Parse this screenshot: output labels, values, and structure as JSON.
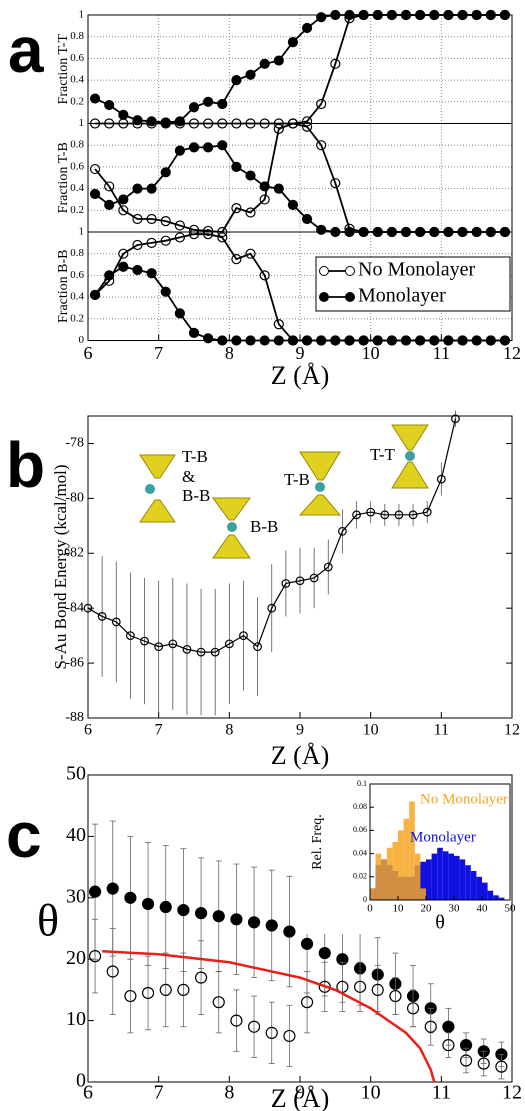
{
  "chart_data": [
    {
      "type": "line",
      "label": "a",
      "xlabel": "Z (Å)",
      "xlim": [
        6,
        12
      ],
      "xticks": [
        6,
        7,
        8,
        9,
        10,
        11,
        12
      ],
      "ylim": [
        0,
        1
      ],
      "yticks": [
        0,
        0.2,
        0.4,
        0.6,
        0.8,
        1
      ],
      "grid": true,
      "legend": "lower right",
      "x": [
        6.1,
        6.3,
        6.5,
        6.7,
        6.9,
        7.1,
        7.3,
        7.5,
        7.7,
        7.9,
        8.1,
        8.3,
        8.5,
        8.7,
        8.9,
        9.1,
        9.3,
        9.5,
        9.7,
        9.9,
        10.1,
        10.3,
        10.5,
        10.7,
        10.9,
        11.1,
        11.3,
        11.5,
        11.7,
        11.9
      ],
      "panels": [
        {
          "ylabel": "Fraction T-T",
          "series": [
            {
              "name": "No Monolayer",
              "marker": "open",
              "color": "#000000",
              "values": [
                0,
                0,
                0,
                0,
                0,
                0,
                0,
                0,
                0,
                0,
                0,
                0,
                0,
                0,
                0,
                0.02,
                0.18,
                0.55,
                0.97,
                1,
                1,
                1,
                1,
                1,
                1,
                1,
                1,
                1,
                1,
                1
              ]
            },
            {
              "name": "Monolayer",
              "marker": "filled",
              "color": "#000000",
              "values": [
                0.23,
                0.17,
                0.08,
                0.03,
                0.02,
                0.01,
                0.02,
                0.15,
                0.2,
                0.18,
                0.4,
                0.45,
                0.55,
                0.58,
                0.75,
                0.88,
                0.98,
                1,
                1,
                1,
                1,
                1,
                1,
                1,
                1,
                1,
                1,
                1,
                1,
                1
              ]
            }
          ]
        },
        {
          "ylabel": "Fraction T-B",
          "series": [
            {
              "name": "No Monolayer",
              "marker": "open",
              "color": "#000000",
              "values": [
                0.58,
                0.42,
                0.2,
                0.12,
                0.12,
                0.1,
                0.06,
                0.02,
                0.01,
                0,
                0.22,
                0.18,
                0.3,
                0.95,
                1,
                0.97,
                0.8,
                0.45,
                0.03,
                0,
                0,
                0,
                0,
                0,
                0,
                0,
                0,
                0,
                0,
                0
              ]
            },
            {
              "name": "Monolayer",
              "marker": "filled",
              "color": "#000000",
              "values": [
                0.35,
                0.25,
                0.3,
                0.4,
                0.4,
                0.55,
                0.75,
                0.78,
                0.78,
                0.8,
                0.6,
                0.52,
                0.42,
                0.4,
                0.25,
                0.12,
                0.02,
                0,
                0,
                0,
                0,
                0,
                0,
                0,
                0,
                0,
                0,
                0,
                0,
                0
              ]
            }
          ]
        },
        {
          "ylabel": "Fraction B-B",
          "series": [
            {
              "name": "No Monolayer",
              "marker": "open",
              "color": "#000000",
              "values": [
                0.42,
                0.55,
                0.8,
                0.88,
                0.9,
                0.92,
                0.95,
                0.98,
                0.98,
                0.95,
                0.75,
                0.8,
                0.6,
                0.15,
                0,
                0,
                0,
                0,
                0,
                0,
                0,
                0,
                0,
                0,
                0,
                0,
                0,
                0,
                0,
                0
              ]
            },
            {
              "name": "Monolayer",
              "marker": "filled",
              "color": "#000000",
              "values": [
                0.42,
                0.6,
                0.68,
                0.65,
                0.62,
                0.45,
                0.25,
                0.07,
                0.02,
                0,
                0,
                0,
                0,
                0,
                0,
                0,
                0,
                0,
                0,
                0,
                0,
                0,
                0,
                0,
                0,
                0,
                0,
                0,
                0,
                0
              ]
            }
          ]
        }
      ]
    },
    {
      "type": "errorline",
      "label": "b",
      "xlabel": "Z (Å)",
      "ylabel": "S-Au Bond Energy (kcal/mol)",
      "xlim": [
        6,
        12
      ],
      "xticks": [
        6,
        7,
        8,
        9,
        10,
        11,
        12
      ],
      "ylim": [
        -88,
        -77
      ],
      "yticks": [
        -88,
        -86,
        -84,
        -82,
        -80,
        -78
      ],
      "annotations": [
        "T-B",
        "&",
        "B-B",
        "B-B",
        "T-B",
        "T-T"
      ],
      "x": [
        6.0,
        6.2,
        6.4,
        6.6,
        6.8,
        7.0,
        7.2,
        7.4,
        7.6,
        7.8,
        8.0,
        8.2,
        8.4,
        8.6,
        8.8,
        9.0,
        9.2,
        9.4,
        9.6,
        9.8,
        10.0,
        10.2,
        10.4,
        10.6,
        10.8,
        11.0,
        11.2
      ],
      "series": [
        {
          "marker": "open",
          "color": "#000000",
          "values": [
            -84.0,
            -84.3,
            -84.5,
            -85.0,
            -85.2,
            -85.4,
            -85.3,
            -85.5,
            -85.6,
            -85.6,
            -85.3,
            -85.0,
            -85.4,
            -84.0,
            -83.1,
            -83.0,
            -82.9,
            -82.5,
            -81.2,
            -80.6,
            -80.5,
            -80.6,
            -80.6,
            -80.6,
            -80.5,
            -79.3,
            -77.1
          ],
          "errors": [
            2.0,
            2.2,
            2.2,
            2.3,
            2.3,
            2.4,
            2.4,
            2.4,
            2.3,
            2.3,
            2.2,
            2.0,
            1.8,
            1.6,
            1.2,
            1.2,
            1.1,
            1.0,
            0.8,
            0.5,
            0.4,
            0.4,
            0.4,
            0.4,
            0.4,
            0.6,
            0.3
          ]
        }
      ]
    },
    {
      "type": "errorscatter",
      "label": "c",
      "xlabel": "Z (Å)",
      "ylabel": "θ",
      "xlim": [
        6,
        12
      ],
      "xticks": [
        6,
        7,
        8,
        9,
        10,
        11,
        12
      ],
      "ylim": [
        0,
        50
      ],
      "yticks": [
        0,
        10,
        20,
        30,
        40,
        50
      ],
      "x": [
        6.1,
        6.35,
        6.6,
        6.85,
        7.1,
        7.35,
        7.6,
        7.85,
        8.1,
        8.35,
        8.6,
        8.85,
        9.1,
        9.35,
        9.6,
        9.85,
        10.1,
        10.35,
        10.6,
        10.85,
        11.1,
        11.35,
        11.6,
        11.85
      ],
      "series": [
        {
          "marker": "filled",
          "color": "#000000",
          "values": [
            31,
            31.5,
            30,
            29,
            28.5,
            28,
            27.5,
            27,
            26.5,
            26,
            25.5,
            24.5,
            22.5,
            21,
            20,
            18.5,
            17.5,
            16,
            14,
            12,
            9,
            6,
            5,
            4.5
          ],
          "errors": [
            11,
            11,
            10,
            10,
            10,
            10,
            9,
            9,
            9,
            9,
            9,
            9,
            8,
            7,
            7,
            6,
            6,
            5,
            5,
            4,
            3,
            2,
            2,
            2
          ]
        },
        {
          "marker": "open",
          "color": "#000000",
          "values": [
            20.5,
            18,
            14,
            14.5,
            15,
            15,
            17,
            13,
            10,
            9,
            8,
            7.5,
            13,
            15.5,
            15.5,
            15.5,
            15,
            14,
            12,
            9,
            6,
            3.5,
            3,
            2.5
          ],
          "errors": [
            6,
            7,
            6,
            6,
            6,
            6,
            6,
            5,
            5,
            5,
            5,
            5,
            5,
            4,
            4,
            4,
            4,
            3,
            3,
            3,
            2,
            2,
            2,
            2
          ]
        }
      ],
      "curve": {
        "color": "#e8201a",
        "x": [
          6.2,
          7,
          8,
          9,
          9.5,
          10,
          10.5,
          10.7,
          10.85,
          10.9
        ],
        "values": [
          21.3,
          20.8,
          19.5,
          17,
          15,
          12,
          8,
          5.5,
          2,
          0
        ]
      },
      "inset": {
        "type": "histogram",
        "xlabel": "θ",
        "ylabel": "Rel. Freq.",
        "xlim": [
          0,
          50
        ],
        "xticks": [
          0,
          10,
          20,
          30,
          40,
          50
        ],
        "ylim": [
          0,
          0.1
        ],
        "yticks": [
          0,
          0.02,
          0.04,
          0.06,
          0.08,
          0.1
        ],
        "bins": [
          0,
          2,
          4,
          6,
          8,
          10,
          12,
          14,
          16,
          18,
          20,
          22,
          24,
          26,
          28,
          30,
          32,
          34,
          36,
          38,
          40,
          42,
          44,
          46,
          48,
          50
        ],
        "series": [
          {
            "name": "Monolayer",
            "color": "#1010e0",
            "values": [
              0.01,
              0.03,
              0.035,
              0.03,
              0.025,
              0.02,
              0.02,
              0.02,
              0.03,
              0.033,
              0.035,
              0.04,
              0.045,
              0.042,
              0.04,
              0.038,
              0.035,
              0.03,
              0.025,
              0.02,
              0.015,
              0.008,
              0.004,
              0.002,
              0
            ]
          },
          {
            "name": "No Monolayer",
            "color": "#f5a623",
            "values": [
              0.01,
              0.04,
              0.035,
              0.045,
              0.05,
              0.06,
              0.07,
              0.085,
              0.04,
              0.01,
              0,
              0,
              0,
              0,
              0,
              0,
              0,
              0,
              0,
              0,
              0,
              0,
              0,
              0,
              0
            ]
          }
        ]
      }
    }
  ]
}
